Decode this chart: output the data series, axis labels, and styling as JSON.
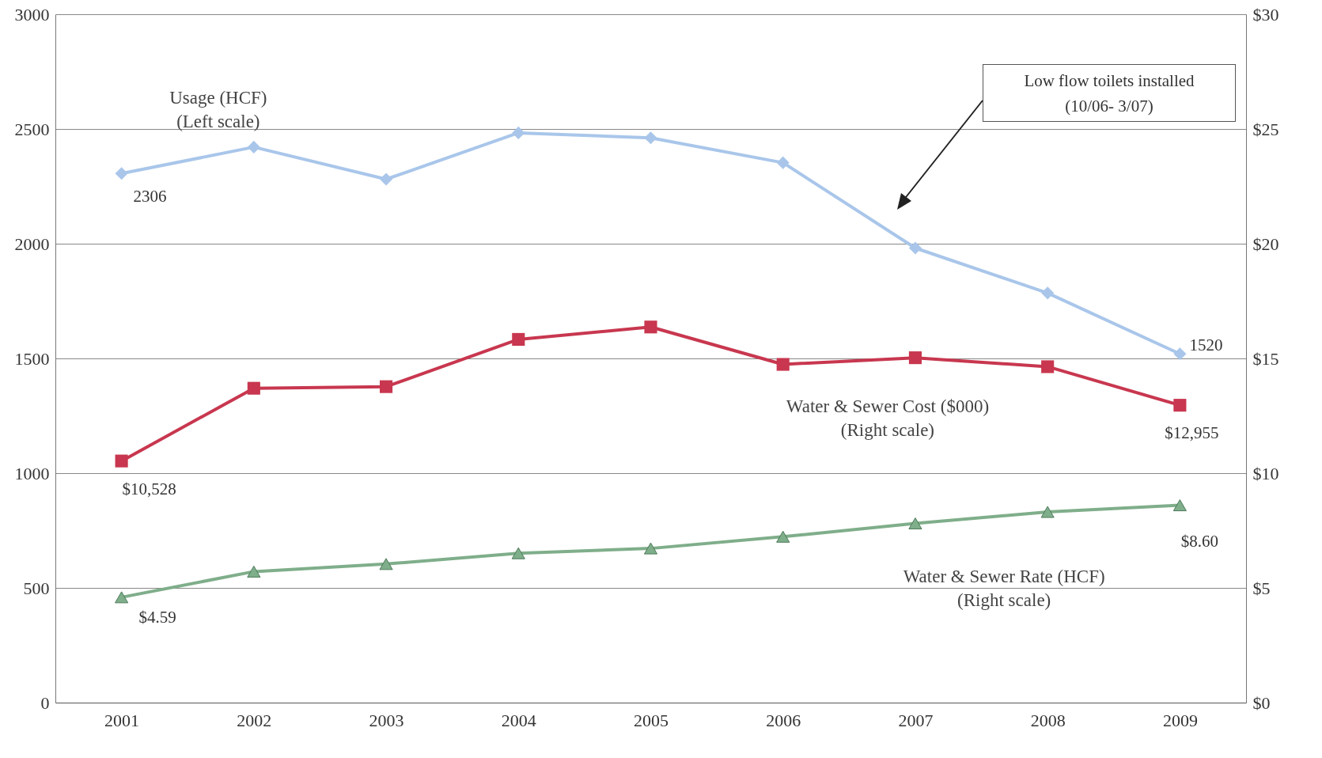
{
  "chart_data": {
    "type": "line",
    "categories": [
      "2001",
      "2002",
      "2003",
      "2004",
      "2005",
      "2006",
      "2007",
      "2008",
      "2009"
    ],
    "series": [
      {
        "name": "Usage (HCF)\n(Left scale)",
        "color": "#a9c6ea",
        "marker": "diamond",
        "values": [
          2306,
          2421,
          2281,
          2483,
          2461,
          2353,
          1981,
          1785,
          1520
        ],
        "value_labels": [
          "2306",
          null,
          null,
          null,
          null,
          null,
          null,
          null,
          "1520"
        ]
      },
      {
        "name": "Water & Sewer Cost ($000)\n(Right scale)",
        "color": "#c8374f",
        "marker": "square",
        "axis": "y2",
        "values": [
          10.53,
          13.7,
          13.77,
          15.83,
          16.37,
          14.74,
          15.03,
          14.64,
          12.96
        ]
      },
      {
        "name": "Water & Sewer Rate (HCF)\n(Right scale)",
        "color": "#7fae8a",
        "marker": "triangle",
        "axis": "y2",
        "values": [
          4.59,
          5.71,
          6.04,
          6.51,
          6.72,
          7.23,
          7.81,
          8.31,
          8.6
        ],
        "value_labels": [
          "$4.59",
          null,
          null,
          null,
          null,
          null,
          null,
          null,
          "$8.60"
        ]
      }
    ],
    "ylim": [
      0,
      3000
    ],
    "yticks": [
      0,
      500,
      1000,
      1500,
      2000,
      2500,
      3000
    ],
    "y2lim": [
      0,
      30
    ],
    "y2ticks": [
      {
        "value": 0,
        "label": "$0"
      },
      {
        "value": 5,
        "label": "$5"
      },
      {
        "value": 10,
        "label": "$10"
      },
      {
        "value": 15,
        "label": "$15"
      },
      {
        "value": 20,
        "label": "$20"
      },
      {
        "value": 25,
        "label": "$25"
      },
      {
        "value": 30,
        "label": "$30"
      }
    ],
    "grid": "y",
    "annotations": [
      "Low flow toilets installed\n(10/06- 3/07)",
      "$10,528",
      "$12,955"
    ]
  }
}
